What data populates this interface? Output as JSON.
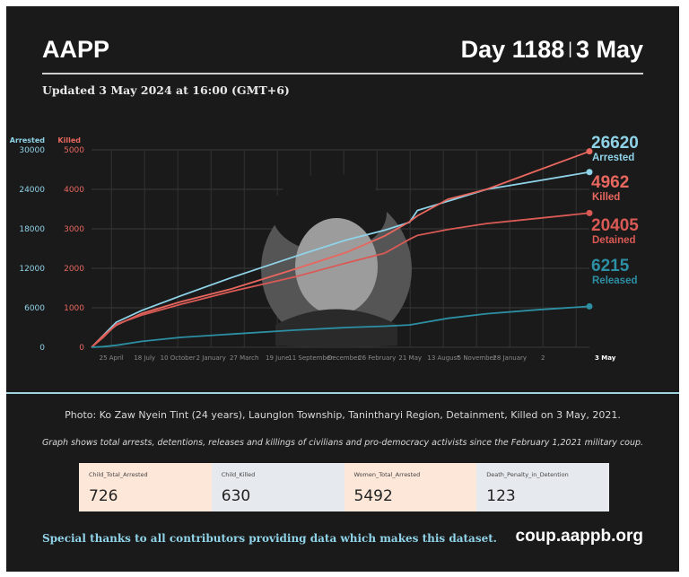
{
  "header": {
    "org": "AAPP",
    "day_label": "Day 1188",
    "separator": "|",
    "date_label": "3 May",
    "updated": "Updated 3 May 2024 at 16:00 (GMT+6)"
  },
  "colors": {
    "arrested": "#8fd3e8",
    "killed": "#e8675f",
    "detained": "#d95a55",
    "released": "#2c8fa3",
    "background": "#1b1a1a"
  },
  "chart_data": {
    "type": "line",
    "left_axis": {
      "title": "Arrested",
      "ticks": [
        0,
        6000,
        12000,
        18000,
        24000,
        30000
      ],
      "ylim": [
        0,
        30000
      ]
    },
    "right_axis": {
      "title": "Killed",
      "ticks": [
        0,
        1000,
        2000,
        3000,
        4000,
        5000
      ],
      "ylim": [
        0,
        5000
      ]
    },
    "x_tick_labels": [
      "25 April",
      "18 July",
      "10 October",
      "2 January",
      "27 March",
      "19 June",
      "11 September",
      "December",
      "26 February",
      "21 May",
      "13 August",
      "5 November",
      "28 January",
      "2",
      "3 May"
    ],
    "x": [
      "2021-02-01",
      "2021-03-01",
      "2021-04-01",
      "2021-06-01",
      "2021-09-01",
      "2022-01-01",
      "2022-06-01",
      "2022-10-01",
      "2023-01-01",
      "2023-03-01",
      "2023-03-20",
      "2023-06-01",
      "2023-09-01",
      "2024-01-01",
      "2024-05-03"
    ],
    "series": [
      {
        "name": "Arrested",
        "axis": "left",
        "values": [
          0,
          1800,
          3800,
          5600,
          7800,
          10600,
          13800,
          16300,
          17800,
          19000,
          20800,
          22200,
          24000,
          25300,
          26620
        ],
        "end_value": "26620",
        "end_label": "Arrested"
      },
      {
        "name": "Killed",
        "axis": "right",
        "values": [
          0,
          290,
          560,
          860,
          1150,
          1480,
          1980,
          2400,
          2820,
          3180,
          3330,
          3750,
          4000,
          4480,
          4962
        ],
        "end_value": "4962",
        "end_label": "Killed"
      },
      {
        "name": "Detained",
        "axis": "left",
        "values": [
          0,
          1500,
          3500,
          4900,
          6500,
          8500,
          10700,
          12800,
          14300,
          16400,
          17000,
          17900,
          18800,
          19600,
          20405
        ],
        "end_value": "20405",
        "end_label": "Detained"
      },
      {
        "name": "Released",
        "axis": "left",
        "values": [
          0,
          100,
          300,
          900,
          1500,
          2000,
          2600,
          3000,
          3200,
          3400,
          3600,
          4400,
          5100,
          5700,
          6215
        ],
        "end_value": "6215",
        "end_label": "Released"
      }
    ]
  },
  "caption": "Photo: Ko Zaw Nyein Tint (24 years), Launglon Township, Tanintharyi Region, Detainment, Killed on 3 May, 2021.",
  "note": "Graph shows total arrests, detentions, releases and killings of civilians and pro-democracy activists since the February 1,2021 military coup.",
  "cards": [
    {
      "label": "Child_Total_Arrested",
      "value": "726",
      "bg": "#fde7d9"
    },
    {
      "label": "Child_Killed",
      "value": "630",
      "bg": "#e6eaee"
    },
    {
      "label": "Women_Total_Arrested",
      "value": "5492",
      "bg": "#fde7d9"
    },
    {
      "label": "Death_Penalty_in_Detention",
      "value": "123",
      "bg": "#e6eaee"
    }
  ],
  "footer": {
    "thanks": "Special thanks to all contributors providing data which makes this dataset.",
    "site": "coup.aappb.org"
  }
}
